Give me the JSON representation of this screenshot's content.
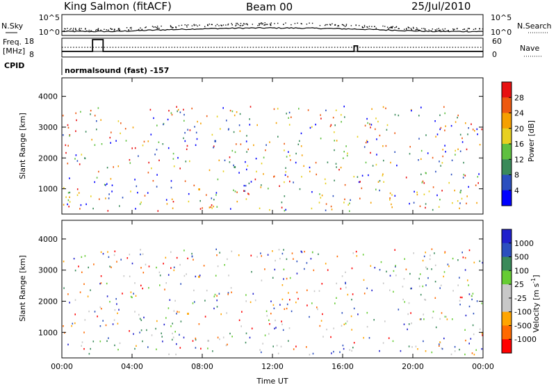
{
  "header": {
    "station": "King Salmon (fitACF)",
    "beam": "Beam 00",
    "date": "25/Jul/2010"
  },
  "aux_panels": {
    "nsky_label": "N.Sky",
    "nsearch_label": "N.Search",
    "noise_ticks": [
      "10^5",
      "10^0"
    ],
    "freq_label": "Freq.",
    "freq_unit": "[MHz]",
    "freq_ticks": [
      "18",
      "8"
    ],
    "nave_label": "Nave",
    "nave_ticks": [
      "60",
      "0"
    ],
    "cpid_label": "CPID",
    "cpid_text": "normalsound (fast) -157"
  },
  "colors": {
    "power": [
      "#0000ff",
      "#2b4fbf",
      "#3a8a5a",
      "#5fc040",
      "#e8d020",
      "#f5a000",
      "#ee5a10",
      "#e81010"
    ],
    "velocity": [
      "#ff0000",
      "#ff6a00",
      "#ffa500",
      "#c8c8c8",
      "#c8c8c8",
      "#66cc33",
      "#3a8a5a",
      "#2b4fbf",
      "#2020cc"
    ]
  },
  "chart_data": [
    {
      "type": "heatmap",
      "panel": "power",
      "xlabel": "",
      "ylabel": "Slant Range [km]",
      "x_ticks": [
        "00:00",
        "04:00",
        "08:00",
        "12:00",
        "16:00",
        "20:00",
        "00:00"
      ],
      "xlim_hours": [
        0,
        24
      ],
      "ylim": [
        180,
        4600
      ],
      "y_ticks": [
        1000,
        2000,
        3000,
        4000
      ],
      "colorbar_label": "Power [dB]",
      "colorbar_ticks": [
        4,
        8,
        12,
        16,
        20,
        24,
        28
      ],
      "colorbar_range": [
        0,
        32
      ]
    },
    {
      "type": "heatmap",
      "panel": "velocity",
      "xlabel": "Time UT",
      "ylabel": "Slant Range [km]",
      "x_ticks": [
        "00:00",
        "04:00",
        "08:00",
        "12:00",
        "16:00",
        "20:00",
        "00:00"
      ],
      "xlim_hours": [
        0,
        24
      ],
      "ylim": [
        180,
        4600
      ],
      "y_ticks": [
        1000,
        2000,
        3000,
        4000
      ],
      "colorbar_label": "Velocity [m s^-1]",
      "colorbar_ticks": [
        "1000",
        "500",
        "100",
        "25",
        "-25",
        "-100",
        "-500",
        "-1000"
      ]
    }
  ]
}
